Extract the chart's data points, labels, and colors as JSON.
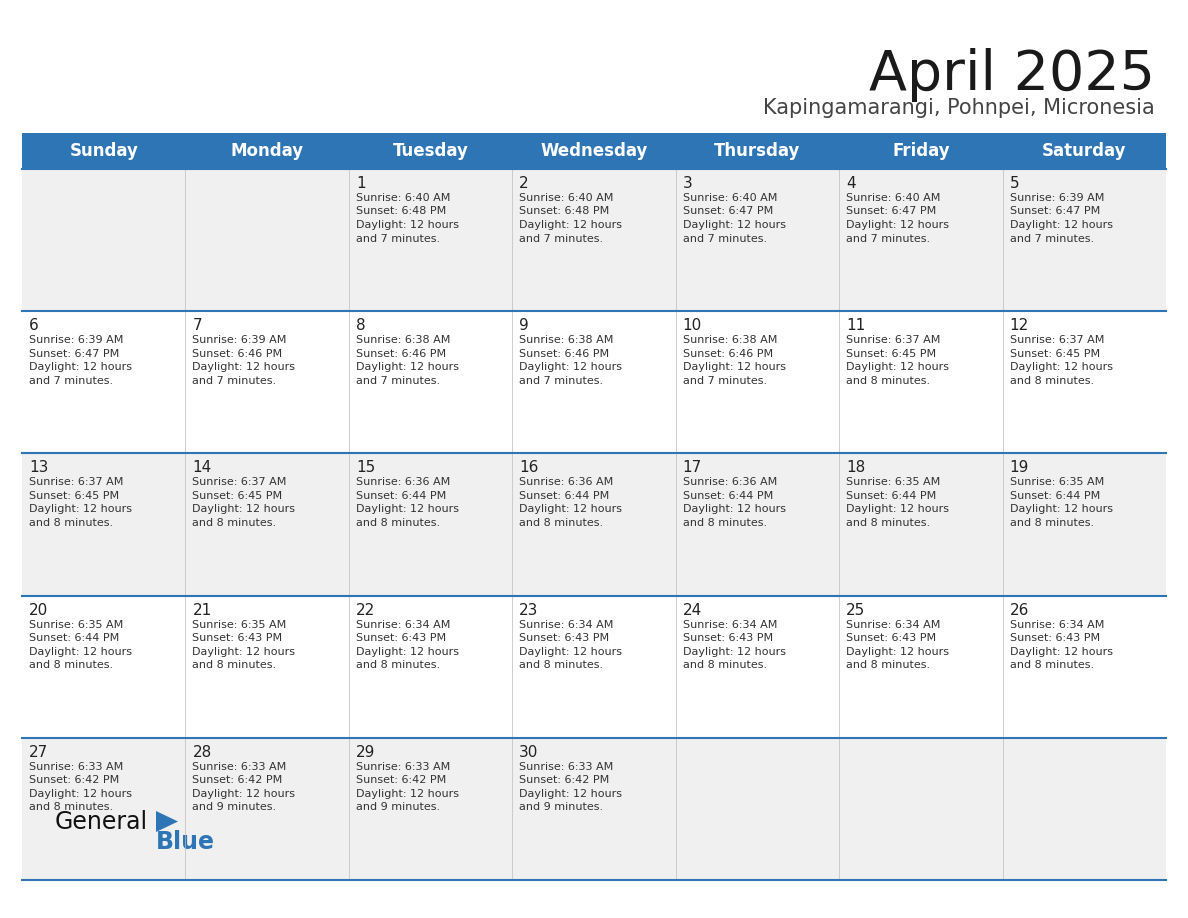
{
  "title": "April 2025",
  "subtitle": "Kapingamarangi, Pohnpei, Micronesia",
  "days_of_week": [
    "Sunday",
    "Monday",
    "Tuesday",
    "Wednesday",
    "Thursday",
    "Friday",
    "Saturday"
  ],
  "header_bg": "#2E75B6",
  "header_text": "#FFFFFF",
  "row_bg_odd": "#F0F0F0",
  "row_bg_even": "#FFFFFF",
  "cell_text_color": "#333333",
  "day_num_color": "#222222",
  "title_color": "#1a1a1a",
  "subtitle_color": "#444444",
  "divider_color": "#2E75B6",
  "calendar_data": [
    [
      {
        "day": null
      },
      {
        "day": null
      },
      {
        "day": 1,
        "sunrise": "6:40 AM",
        "sunset": "6:48 PM",
        "daylight": "12 hours",
        "daylight2": "and 7 minutes."
      },
      {
        "day": 2,
        "sunrise": "6:40 AM",
        "sunset": "6:48 PM",
        "daylight": "12 hours",
        "daylight2": "and 7 minutes."
      },
      {
        "day": 3,
        "sunrise": "6:40 AM",
        "sunset": "6:47 PM",
        "daylight": "12 hours",
        "daylight2": "and 7 minutes."
      },
      {
        "day": 4,
        "sunrise": "6:40 AM",
        "sunset": "6:47 PM",
        "daylight": "12 hours",
        "daylight2": "and 7 minutes."
      },
      {
        "day": 5,
        "sunrise": "6:39 AM",
        "sunset": "6:47 PM",
        "daylight": "12 hours",
        "daylight2": "and 7 minutes."
      }
    ],
    [
      {
        "day": 6,
        "sunrise": "6:39 AM",
        "sunset": "6:47 PM",
        "daylight": "12 hours",
        "daylight2": "and 7 minutes."
      },
      {
        "day": 7,
        "sunrise": "6:39 AM",
        "sunset": "6:46 PM",
        "daylight": "12 hours",
        "daylight2": "and 7 minutes."
      },
      {
        "day": 8,
        "sunrise": "6:38 AM",
        "sunset": "6:46 PM",
        "daylight": "12 hours",
        "daylight2": "and 7 minutes."
      },
      {
        "day": 9,
        "sunrise": "6:38 AM",
        "sunset": "6:46 PM",
        "daylight": "12 hours",
        "daylight2": "and 7 minutes."
      },
      {
        "day": 10,
        "sunrise": "6:38 AM",
        "sunset": "6:46 PM",
        "daylight": "12 hours",
        "daylight2": "and 7 minutes."
      },
      {
        "day": 11,
        "sunrise": "6:37 AM",
        "sunset": "6:45 PM",
        "daylight": "12 hours",
        "daylight2": "and 8 minutes."
      },
      {
        "day": 12,
        "sunrise": "6:37 AM",
        "sunset": "6:45 PM",
        "daylight": "12 hours",
        "daylight2": "and 8 minutes."
      }
    ],
    [
      {
        "day": 13,
        "sunrise": "6:37 AM",
        "sunset": "6:45 PM",
        "daylight": "12 hours",
        "daylight2": "and 8 minutes."
      },
      {
        "day": 14,
        "sunrise": "6:37 AM",
        "sunset": "6:45 PM",
        "daylight": "12 hours",
        "daylight2": "and 8 minutes."
      },
      {
        "day": 15,
        "sunrise": "6:36 AM",
        "sunset": "6:44 PM",
        "daylight": "12 hours",
        "daylight2": "and 8 minutes."
      },
      {
        "day": 16,
        "sunrise": "6:36 AM",
        "sunset": "6:44 PM",
        "daylight": "12 hours",
        "daylight2": "and 8 minutes."
      },
      {
        "day": 17,
        "sunrise": "6:36 AM",
        "sunset": "6:44 PM",
        "daylight": "12 hours",
        "daylight2": "and 8 minutes."
      },
      {
        "day": 18,
        "sunrise": "6:35 AM",
        "sunset": "6:44 PM",
        "daylight": "12 hours",
        "daylight2": "and 8 minutes."
      },
      {
        "day": 19,
        "sunrise": "6:35 AM",
        "sunset": "6:44 PM",
        "daylight": "12 hours",
        "daylight2": "and 8 minutes."
      }
    ],
    [
      {
        "day": 20,
        "sunrise": "6:35 AM",
        "sunset": "6:44 PM",
        "daylight": "12 hours",
        "daylight2": "and 8 minutes."
      },
      {
        "day": 21,
        "sunrise": "6:35 AM",
        "sunset": "6:43 PM",
        "daylight": "12 hours",
        "daylight2": "and 8 minutes."
      },
      {
        "day": 22,
        "sunrise": "6:34 AM",
        "sunset": "6:43 PM",
        "daylight": "12 hours",
        "daylight2": "and 8 minutes."
      },
      {
        "day": 23,
        "sunrise": "6:34 AM",
        "sunset": "6:43 PM",
        "daylight": "12 hours",
        "daylight2": "and 8 minutes."
      },
      {
        "day": 24,
        "sunrise": "6:34 AM",
        "sunset": "6:43 PM",
        "daylight": "12 hours",
        "daylight2": "and 8 minutes."
      },
      {
        "day": 25,
        "sunrise": "6:34 AM",
        "sunset": "6:43 PM",
        "daylight": "12 hours",
        "daylight2": "and 8 minutes."
      },
      {
        "day": 26,
        "sunrise": "6:34 AM",
        "sunset": "6:43 PM",
        "daylight": "12 hours",
        "daylight2": "and 8 minutes."
      }
    ],
    [
      {
        "day": 27,
        "sunrise": "6:33 AM",
        "sunset": "6:42 PM",
        "daylight": "12 hours",
        "daylight2": "and 8 minutes."
      },
      {
        "day": 28,
        "sunrise": "6:33 AM",
        "sunset": "6:42 PM",
        "daylight": "12 hours",
        "daylight2": "and 9 minutes."
      },
      {
        "day": 29,
        "sunrise": "6:33 AM",
        "sunset": "6:42 PM",
        "daylight": "12 hours",
        "daylight2": "and 9 minutes."
      },
      {
        "day": 30,
        "sunrise": "6:33 AM",
        "sunset": "6:42 PM",
        "daylight": "12 hours",
        "daylight2": "and 9 minutes."
      },
      {
        "day": null
      },
      {
        "day": null
      },
      {
        "day": null
      }
    ]
  ]
}
